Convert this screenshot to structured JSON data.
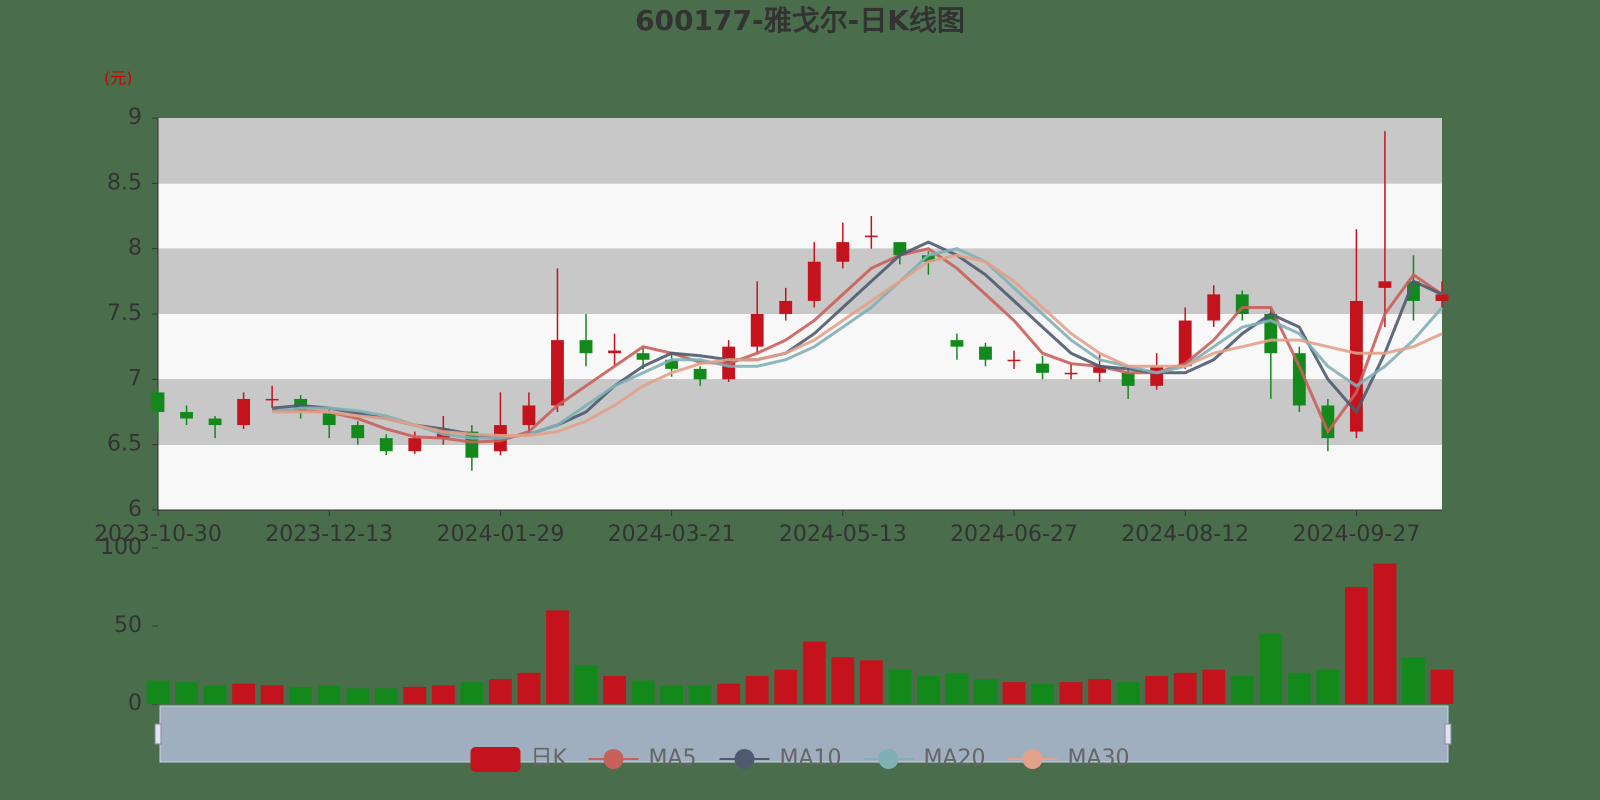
{
  "chart_data": {
    "type": "candlestick",
    "title": "600177-雅戈尔-日K线图",
    "unit": "(元)",
    "categories": [
      "2023-10-30",
      null,
      null,
      null,
      null,
      null,
      "2023-12-13",
      null,
      null,
      null,
      null,
      null,
      "2024-01-29",
      null,
      null,
      null,
      null,
      null,
      "2024-03-21",
      null,
      null,
      null,
      null,
      null,
      "2024-05-13",
      null,
      null,
      null,
      null,
      null,
      "2024-06-27",
      null,
      null,
      null,
      null,
      null,
      "2024-08-12",
      null,
      null,
      null,
      null,
      null,
      "2024-09-27",
      null,
      null,
      null
    ],
    "ylim": [
      6,
      9
    ],
    "yticks": [
      6,
      6.5,
      7,
      7.5,
      8,
      8.5,
      9
    ],
    "split_area": true,
    "legend": "bottom",
    "series": [
      {
        "name": "日K",
        "type": "candlestick",
        "up_color": "#c4131c",
        "down_color": "#13891c",
        "values": [
          [
            6.9,
            6.75,
            6.6,
            6.92
          ],
          [
            6.75,
            6.7,
            6.65,
            6.8
          ],
          [
            6.7,
            6.65,
            6.55,
            6.72
          ],
          [
            6.65,
            6.85,
            6.62,
            6.9
          ],
          [
            6.85,
            6.85,
            6.78,
            6.95
          ],
          [
            6.85,
            6.75,
            6.7,
            6.88
          ],
          [
            6.75,
            6.65,
            6.55,
            6.78
          ],
          [
            6.65,
            6.55,
            6.5,
            6.68
          ],
          [
            6.55,
            6.45,
            6.42,
            6.58
          ],
          [
            6.45,
            6.55,
            6.43,
            6.6
          ],
          [
            6.55,
            6.62,
            6.5,
            6.72
          ],
          [
            6.6,
            6.4,
            6.3,
            6.65
          ],
          [
            6.45,
            6.65,
            6.42,
            6.9
          ],
          [
            6.65,
            6.8,
            6.6,
            6.9
          ],
          [
            6.8,
            7.3,
            6.75,
            7.85
          ],
          [
            7.3,
            7.2,
            7.1,
            7.5
          ],
          [
            7.2,
            7.22,
            7.1,
            7.35
          ],
          [
            7.2,
            7.15,
            7.08,
            7.25
          ],
          [
            7.15,
            7.08,
            7.02,
            7.2
          ],
          [
            7.08,
            7.0,
            6.95,
            7.1
          ],
          [
            7.0,
            7.25,
            6.98,
            7.3
          ],
          [
            7.25,
            7.5,
            7.2,
            7.75
          ],
          [
            7.5,
            7.6,
            7.45,
            7.7
          ],
          [
            7.6,
            7.9,
            7.55,
            8.05
          ],
          [
            7.9,
            8.05,
            7.85,
            8.2
          ],
          [
            8.1,
            8.1,
            8.0,
            8.25
          ],
          [
            8.05,
            7.95,
            7.88,
            8.05
          ],
          [
            7.95,
            7.9,
            7.8,
            7.98
          ],
          [
            7.3,
            7.25,
            7.15,
            7.35
          ],
          [
            7.25,
            7.15,
            7.1,
            7.28
          ],
          [
            7.15,
            7.15,
            7.08,
            7.22
          ],
          [
            7.12,
            7.05,
            7.0,
            7.18
          ],
          [
            7.05,
            7.05,
            7.0,
            7.12
          ],
          [
            7.05,
            7.1,
            6.98,
            7.2
          ],
          [
            7.05,
            6.95,
            6.85,
            7.1
          ],
          [
            6.95,
            7.1,
            6.92,
            7.2
          ],
          [
            7.1,
            7.45,
            7.08,
            7.55
          ],
          [
            7.45,
            7.65,
            7.4,
            7.72
          ],
          [
            7.65,
            7.5,
            7.45,
            7.68
          ],
          [
            7.5,
            7.2,
            6.85,
            7.55
          ],
          [
            7.2,
            6.8,
            6.75,
            7.25
          ],
          [
            6.8,
            6.55,
            6.45,
            6.85
          ],
          [
            6.6,
            7.6,
            6.55,
            8.15
          ],
          [
            7.7,
            7.75,
            7.4,
            8.9
          ],
          [
            7.75,
            7.6,
            7.45,
            7.95
          ],
          [
            7.6,
            7.65,
            7.55,
            7.75
          ]
        ]
      },
      {
        "name": "MA5",
        "type": "line",
        "color": "#c8605c",
        "values": [
          null,
          null,
          null,
          null,
          6.76,
          6.76,
          6.75,
          6.7,
          6.62,
          6.56,
          6.55,
          6.52,
          6.53,
          6.6,
          6.8,
          6.95,
          7.1,
          7.25,
          7.2,
          7.13,
          7.12,
          7.2,
          7.3,
          7.45,
          7.65,
          7.85,
          7.95,
          8.0,
          7.85,
          7.65,
          7.45,
          7.2,
          7.12,
          7.1,
          7.05,
          7.05,
          7.12,
          7.3,
          7.55,
          7.55,
          7.1,
          6.6,
          6.9,
          7.5,
          7.8,
          7.65
        ]
      },
      {
        "name": "MA10",
        "type": "line",
        "color": "#4e5a6e",
        "values": [
          null,
          null,
          null,
          null,
          6.78,
          6.8,
          6.78,
          6.74,
          6.7,
          6.65,
          6.62,
          6.58,
          6.55,
          6.58,
          6.65,
          6.75,
          6.95,
          7.1,
          7.2,
          7.18,
          7.15,
          7.15,
          7.2,
          7.35,
          7.55,
          7.75,
          7.95,
          8.05,
          7.95,
          7.8,
          7.6,
          7.4,
          7.2,
          7.1,
          7.08,
          7.05,
          7.05,
          7.15,
          7.35,
          7.5,
          7.4,
          7.0,
          6.75,
          7.2,
          7.75,
          7.65
        ]
      },
      {
        "name": "MA20",
        "type": "line",
        "color": "#7fb0b6",
        "values": [
          null,
          null,
          null,
          null,
          6.75,
          6.78,
          6.78,
          6.76,
          6.72,
          6.65,
          6.58,
          6.55,
          6.55,
          6.58,
          6.65,
          6.8,
          6.95,
          7.05,
          7.15,
          7.15,
          7.1,
          7.1,
          7.15,
          7.25,
          7.4,
          7.55,
          7.75,
          7.95,
          8.0,
          7.9,
          7.7,
          7.5,
          7.3,
          7.15,
          7.1,
          7.05,
          7.1,
          7.25,
          7.4,
          7.45,
          7.35,
          7.1,
          6.95,
          7.1,
          7.3,
          7.55
        ]
      },
      {
        "name": "MA30",
        "type": "line",
        "color": "#e2a18b",
        "values": [
          null,
          null,
          null,
          null,
          6.75,
          6.75,
          6.75,
          6.72,
          6.7,
          6.65,
          6.6,
          6.58,
          6.57,
          6.57,
          6.6,
          6.68,
          6.8,
          6.95,
          7.05,
          7.12,
          7.15,
          7.15,
          7.2,
          7.3,
          7.45,
          7.6,
          7.75,
          7.9,
          7.95,
          7.9,
          7.75,
          7.55,
          7.35,
          7.2,
          7.1,
          7.1,
          7.1,
          7.2,
          7.25,
          7.3,
          7.3,
          7.25,
          7.2,
          7.2,
          7.25,
          7.35
        ]
      }
    ],
    "volume": {
      "ylim": [
        0,
        100
      ],
      "yticks": [
        0,
        50,
        100
      ],
      "values": [
        15,
        14,
        12,
        13,
        12,
        11,
        12,
        10,
        10,
        11,
        12,
        14,
        16,
        20,
        60,
        25,
        18,
        15,
        12,
        12,
        13,
        18,
        22,
        40,
        30,
        28,
        22,
        18,
        20,
        16,
        14,
        13,
        14,
        16,
        14,
        18,
        20,
        22,
        18,
        45,
        20,
        22,
        75,
        90,
        30,
        22
      ]
    }
  }
}
